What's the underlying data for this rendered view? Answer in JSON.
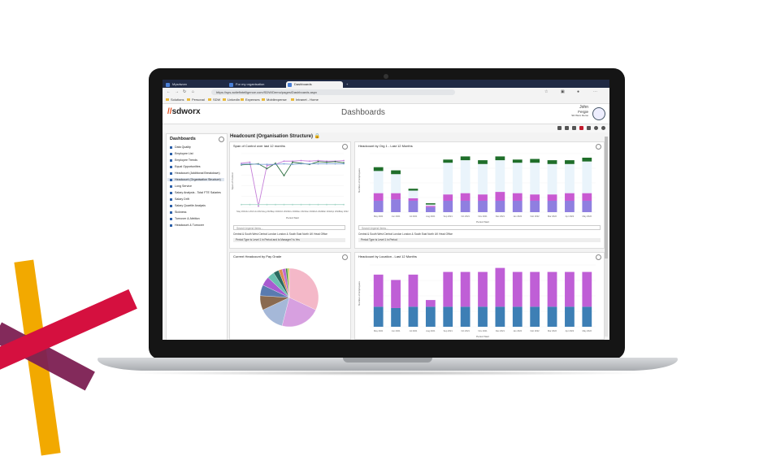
{
  "browser": {
    "tabs": [
      {
        "label": "Mysdworx",
        "active": false
      },
      {
        "label": "For my organisation",
        "active": false
      },
      {
        "label": "Dashboards",
        "active": true
      }
    ],
    "url": "https://sps.actiefintelligence.com/SDW/Demo/pages/Dashboards.aspx",
    "bookmarks": [
      "Solutions",
      "Personal",
      "SDW",
      "LinkedIn",
      "Expenses",
      "Mobilexpense",
      "Intranet - Home"
    ]
  },
  "app": {
    "logo_text": "sdworx",
    "title": "Dashboards",
    "user_name": "John",
    "user_surname": "Fergie",
    "user_org": "SD Worx Demo"
  },
  "sidebar": {
    "title": "Dashboards",
    "items": [
      {
        "label": "Data Quality",
        "selected": false
      },
      {
        "label": "Employee List",
        "selected": false
      },
      {
        "label": "Employee Trends",
        "selected": false
      },
      {
        "label": "Equal Opportunities",
        "selected": false
      },
      {
        "label": "Headcount (Additional Breakdown)",
        "selected": false
      },
      {
        "label": "Headcount (Organisation Structure)",
        "selected": true
      },
      {
        "label": "Long Service",
        "selected": false
      },
      {
        "label": "Salary Analysis - Total FTE Salaries",
        "selected": false
      },
      {
        "label": "Salary Drift",
        "selected": false
      },
      {
        "label": "Salary Quartile Analysis",
        "selected": false
      },
      {
        "label": "Sickness",
        "selected": false
      },
      {
        "label": "Turnover & Attrition",
        "selected": false
      },
      {
        "label": "Headcount & Turnover",
        "selected": false
      }
    ]
  },
  "page": {
    "heading": "Headcount (Organisation Structure)"
  },
  "panels": {
    "span": {
      "title": "Span of Control over last 12 months",
      "search_placeholder": "Search legend items...",
      "legend": "Central & South West  Central London  London & South East  North  UK Head Office",
      "filter": "Period Type is Level 1 in Period and Is Manager? is Yes"
    },
    "org": {
      "title": "Headcount by Org 1 - Last 12 Months",
      "search_placeholder": "Search legend items...",
      "legend": "Central & South West  Central London  London & South East  North  UK Head Office",
      "filter": "Period Type is Level 1 in Period"
    },
    "grade": {
      "title": "Current Headcount by Pay Grade"
    },
    "location": {
      "title": "Headcount by Location - Last 12 Months"
    }
  },
  "chart_data": [
    {
      "type": "line",
      "title": "Span of Control over last 12 months",
      "xlabel": "Period Start",
      "ylabel": "Span of Control",
      "ylim": [
        0,
        10
      ],
      "x": [
        "May 2021",
        "Jun 2021",
        "Jul 2021",
        "Aug 2021",
        "Sep 2021",
        "Oct 2021",
        "Nov 2021",
        "Dec 2021",
        "Jan 2022",
        "Feb 2022",
        "Mar 2022",
        "Apr 2022",
        "May 2022"
      ],
      "series": [
        {
          "color": "#c57fd9",
          "values": [
            8.2,
            8.4,
            0.2,
            7.8,
            8.0,
            8.6,
            8.6,
            8.7,
            8.6,
            8.7,
            8.6,
            8.6,
            8.7
          ]
        },
        {
          "color": "#2c6e3f",
          "values": [
            7.9,
            8.0,
            8.1,
            7.2,
            8.2,
            5.9,
            8.4,
            8.2,
            8.0,
            8.5,
            8.4,
            8.5,
            8.3
          ]
        },
        {
          "color": "#7fa6d9",
          "values": [
            8.0,
            8.1,
            8.0,
            8.0,
            8.0,
            8.1,
            8.0,
            8.1,
            8.1,
            8.1,
            8.1,
            8.1,
            8.1
          ]
        },
        {
          "color": "#a6d6c8",
          "values": [
            0.5,
            0.5,
            0.5,
            0.5,
            0.5,
            0.5,
            0.5,
            0.5,
            0.5,
            0.5,
            0.5,
            0.5,
            0.5
          ]
        }
      ]
    },
    {
      "type": "bar",
      "title": "Headcount by Org 1 - Last 12 Months",
      "xlabel": "Period Start",
      "ylabel": "Number of Employees",
      "categories": [
        "May 2021",
        "Jun 2021",
        "Jul 2021",
        "Aug 2021",
        "Sep 2021",
        "Oct 2021",
        "Nov 2021",
        "Dec 2021",
        "Jan 2022",
        "Feb 2022",
        "Mar 2022",
        "Apr 2022",
        "May 2022"
      ],
      "series": [
        {
          "color": "#8f7fe0",
          "values": [
            18,
            20,
            18,
            8,
            18,
            18,
            18,
            18,
            18,
            18,
            18,
            18,
            18
          ]
        },
        {
          "color": "#c85ad2",
          "values": [
            12,
            10,
            4,
            2,
            10,
            12,
            10,
            14,
            12,
            10,
            10,
            12,
            12
          ]
        },
        {
          "color": "#eaf4fb",
          "values": [
            35,
            30,
            12,
            2,
            50,
            52,
            48,
            50,
            48,
            50,
            48,
            46,
            50
          ]
        },
        {
          "color": "#1f6e2a",
          "values": [
            6,
            6,
            3,
            2,
            5,
            6,
            6,
            6,
            5,
            6,
            6,
            6,
            6
          ]
        }
      ]
    },
    {
      "type": "pie",
      "title": "Current Headcount by Pay Grade",
      "values": [
        32,
        22,
        14,
        8,
        6,
        5,
        4,
        3,
        2,
        2,
        1,
        1
      ],
      "colors": [
        "#f4b8c8",
        "#d7a0e0",
        "#a5b8d8",
        "#8a6a50",
        "#5a7bb0",
        "#a85ad0",
        "#6ac0b0",
        "#2a6a60",
        "#e08a50",
        "#c06ad0",
        "#3a8a3a",
        "#d0d060"
      ]
    },
    {
      "type": "bar",
      "title": "Headcount by Location - Last 12 Months",
      "xlabel": "Period Start",
      "ylabel": "Number of Employees",
      "categories": [
        "May 2021",
        "Jun 2021",
        "Jul 2021",
        "Aug 2021",
        "Sep 2021",
        "Oct 2021",
        "Nov 2021",
        "Dec 2021",
        "Jan 2022",
        "Feb 2022",
        "Mar 2022",
        "Apr 2022",
        "May 2022"
      ],
      "series": [
        {
          "color": "#3d7fb5",
          "values": [
            30,
            28,
            30,
            30,
            30,
            30,
            30,
            30,
            30,
            30,
            30,
            30,
            30
          ]
        },
        {
          "color": "#bf5fd6",
          "values": [
            48,
            42,
            48,
            10,
            52,
            52,
            52,
            58,
            52,
            52,
            52,
            52,
            52
          ]
        }
      ]
    }
  ],
  "colors": {
    "accent": "#2b5fa8",
    "brand_orange": "#e04a1a",
    "yellow": "#f2a900",
    "red": "#d5103f",
    "purple": "#7c1f52"
  }
}
